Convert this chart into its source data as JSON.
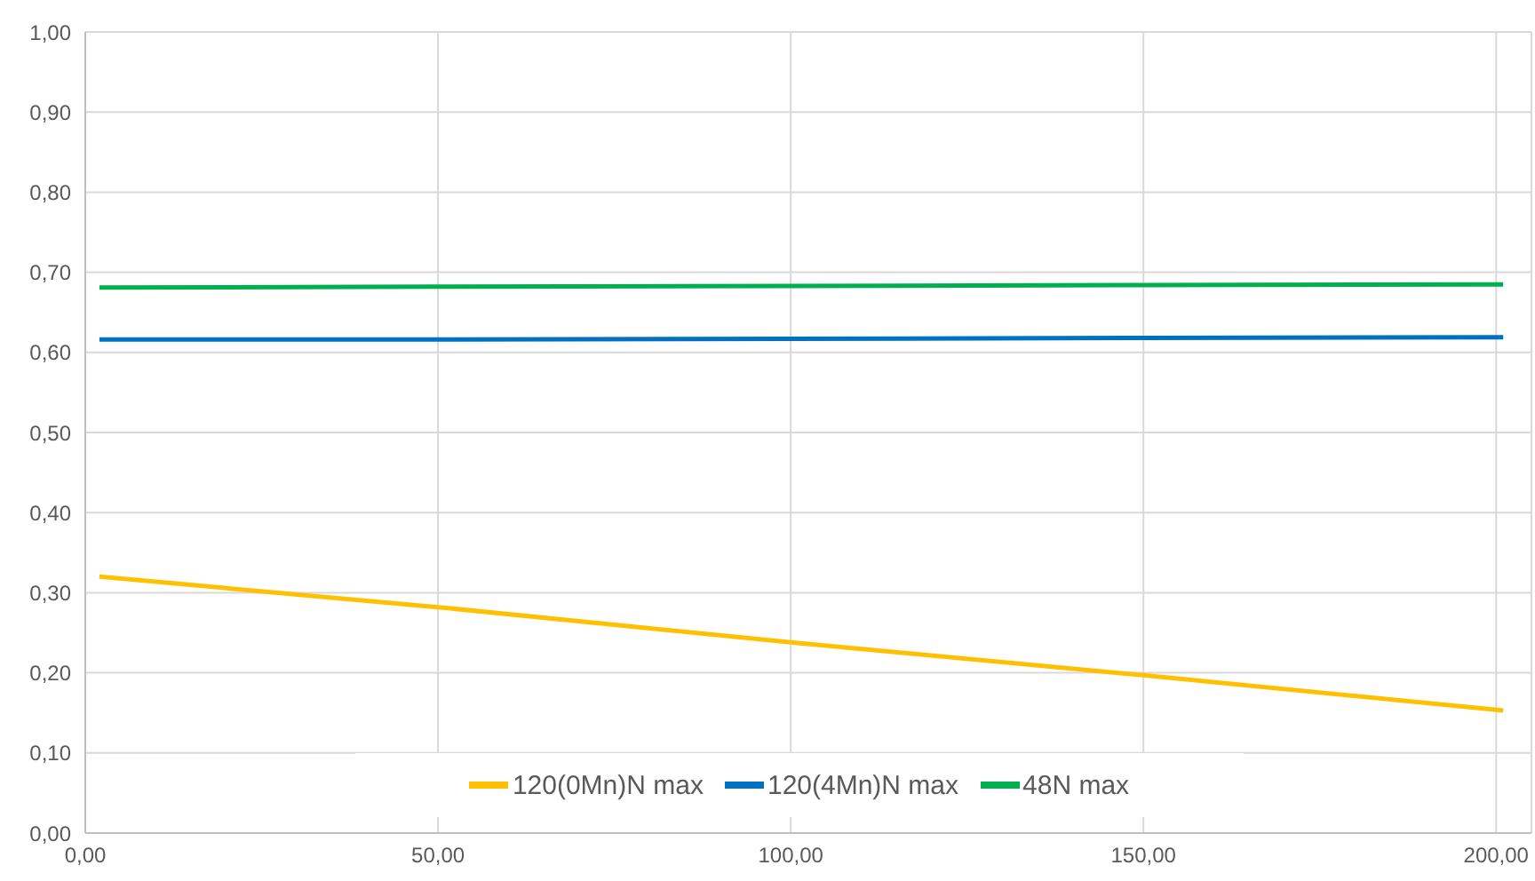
{
  "chart_data": {
    "type": "line",
    "x": [
      2,
      50,
      100,
      150,
      201
    ],
    "series": [
      {
        "name": "120(0Mn)N max",
        "color": "#ffc000",
        "values": [
          0.32,
          0.282,
          0.238,
          0.197,
          0.153
        ]
      },
      {
        "name": "120(4Mn)N max",
        "color": "#0070c0",
        "values": [
          0.616,
          0.616,
          0.617,
          0.618,
          0.619
        ]
      },
      {
        "name": "48N max",
        "color": "#00b050",
        "values": [
          0.681,
          0.682,
          0.683,
          0.684,
          0.685
        ]
      }
    ],
    "xlim": [
      0,
      205
    ],
    "xticks": [
      {
        "value": 0,
        "label": "0,00"
      },
      {
        "value": 50,
        "label": "50,00"
      },
      {
        "value": 100,
        "label": "100,00"
      },
      {
        "value": 150,
        "label": "150,00"
      },
      {
        "value": 200,
        "label": "200,00"
      }
    ],
    "ylim": [
      0,
      1
    ],
    "yticks": [
      {
        "value": 0,
        "label": "0,00"
      },
      {
        "value": 0.1,
        "label": "0,10"
      },
      {
        "value": 0.2,
        "label": "0,20"
      },
      {
        "value": 0.3,
        "label": "0,30"
      },
      {
        "value": 0.4,
        "label": "0,40"
      },
      {
        "value": 0.5,
        "label": "0,50"
      },
      {
        "value": 0.6,
        "label": "0,60"
      },
      {
        "value": 0.7,
        "label": "0,70"
      },
      {
        "value": 0.8,
        "label": "0,80"
      },
      {
        "value": 0.9,
        "label": "0,90"
      },
      {
        "value": 1,
        "label": "1,00"
      }
    ],
    "grid": true,
    "legend": "bottom",
    "marker": "none",
    "line_style": "solid"
  }
}
